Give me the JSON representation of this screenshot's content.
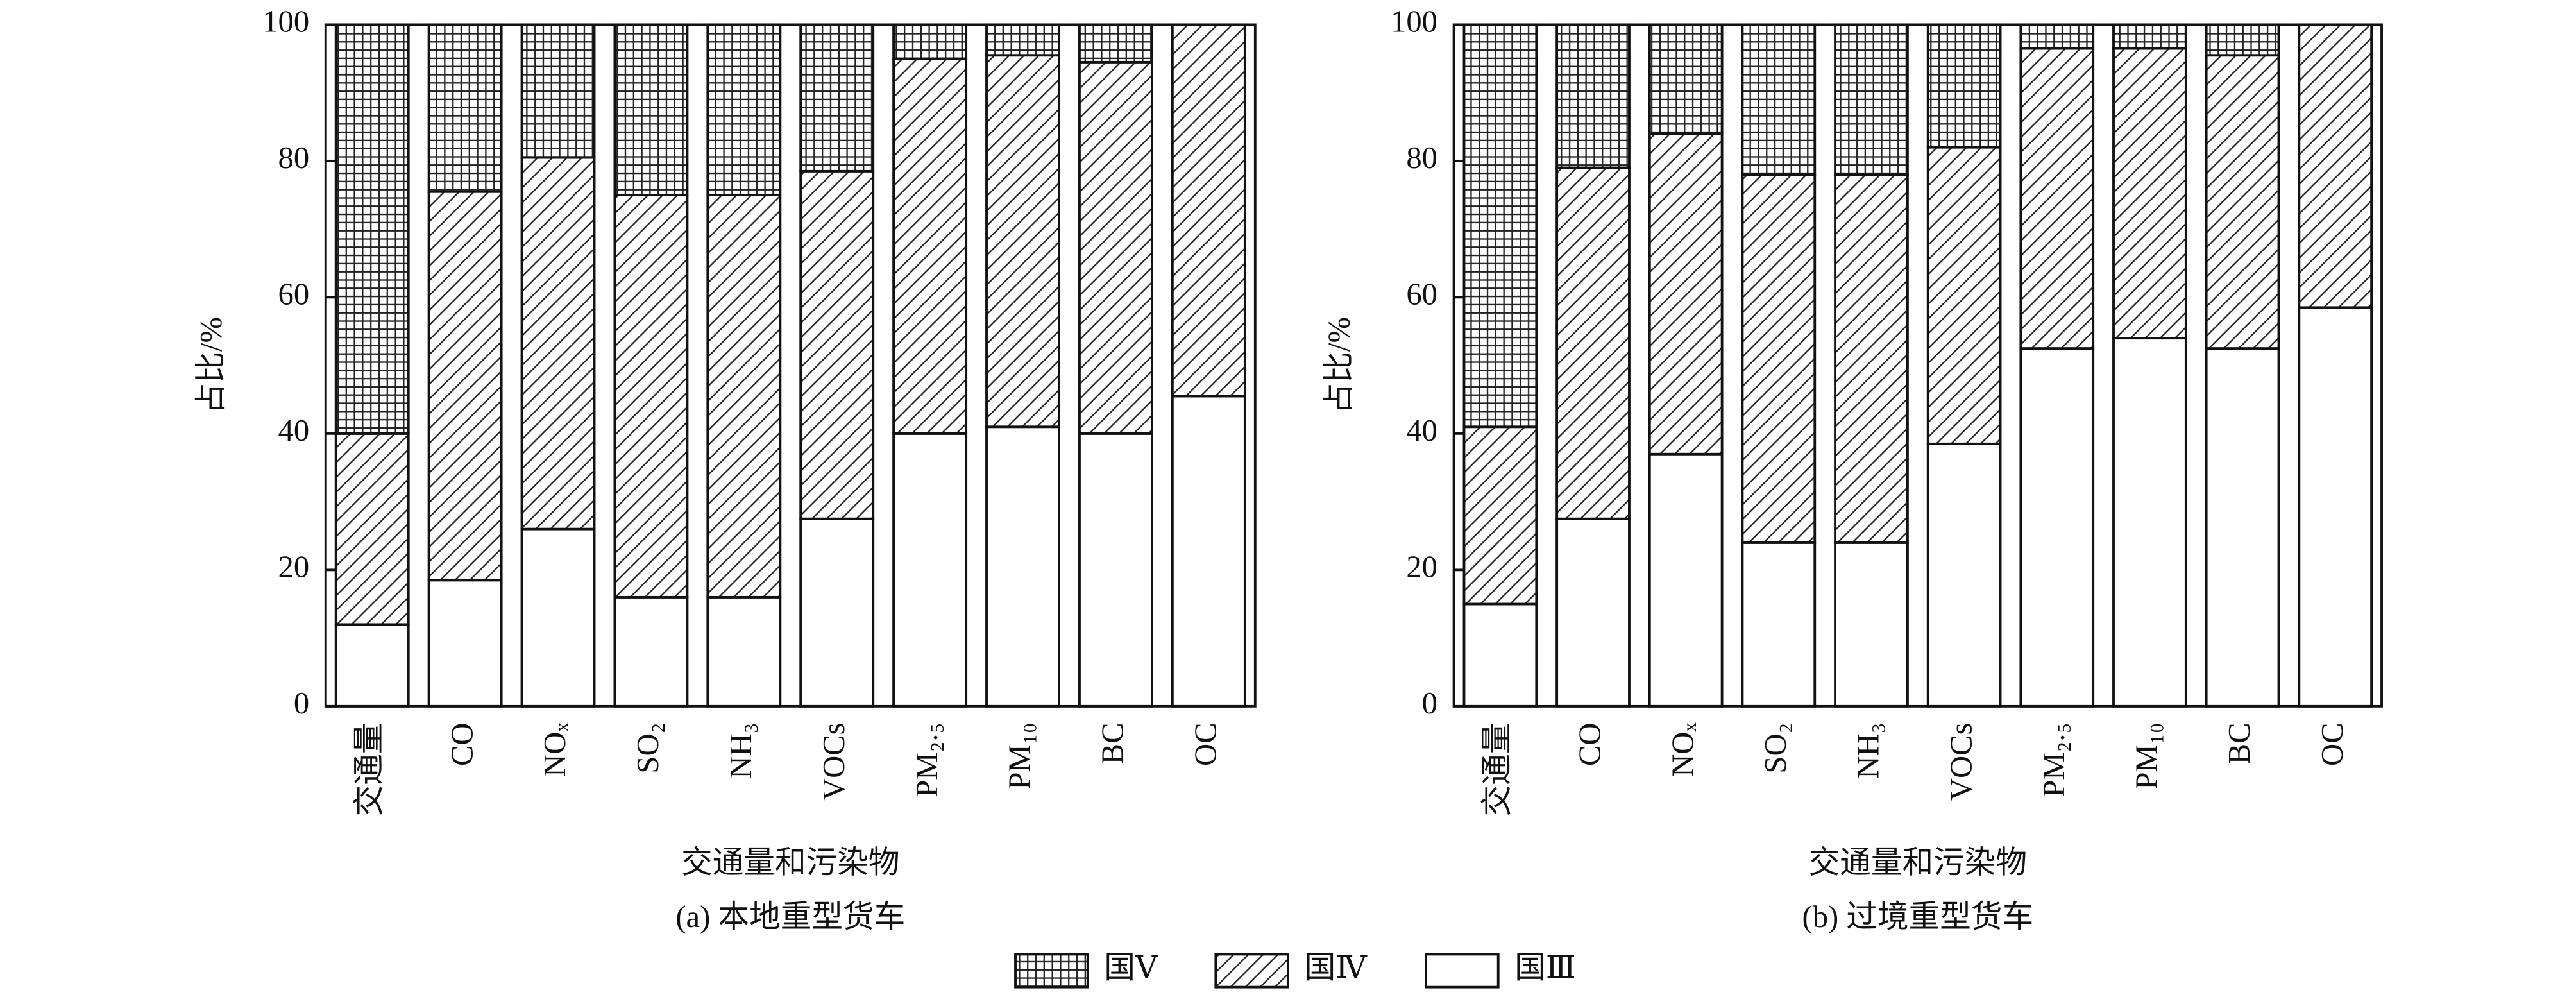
{
  "chart_data": [
    {
      "type": "stacked-bar",
      "title": "(a) 本地重型货车",
      "x_label": "交通量和污染物",
      "y_label": "占比/%",
      "categories": [
        "交通量",
        "CO",
        "NOₓ",
        "SO₂",
        "NH₃",
        "VOCs",
        "PM₂.₅",
        "PM₁₀",
        "BC",
        "OC"
      ],
      "ylim": [
        0,
        100
      ],
      "yticks": [
        0,
        20,
        40,
        60,
        80,
        100
      ],
      "series": [
        {
          "name": "国Ⅴ",
          "color": "#ffffff",
          "pattern": "grid",
          "values": [
            60,
            24.5,
            19.5,
            25,
            25,
            21.5,
            5,
            4.5,
            5.5,
            0
          ]
        },
        {
          "name": "国Ⅳ",
          "color": "#ffffff",
          "pattern": "hatch",
          "values": [
            28,
            57,
            54.5,
            59,
            59,
            51,
            55,
            54.5,
            54.5,
            54.5
          ]
        },
        {
          "name": "国Ⅲ",
          "color": "#ffffff",
          "pattern": "none",
          "values": [
            12,
            18.5,
            26,
            16,
            16,
            27.5,
            40,
            41,
            40,
            45.5
          ]
        }
      ]
    },
    {
      "type": "stacked-bar",
      "title": "(b) 过境重型货车",
      "x_label": "交通量和污染物",
      "y_label": "占比/%",
      "categories": [
        "交通量",
        "CO",
        "NOₓ",
        "SO₂",
        "NH₃",
        "VOCs",
        "PM₂.₅",
        "PM₁₀",
        "BC",
        "OC"
      ],
      "ylim": [
        0,
        100
      ],
      "yticks": [
        0,
        20,
        40,
        60,
        80,
        100
      ],
      "series": [
        {
          "name": "国Ⅴ",
          "color": "#ffffff",
          "pattern": "grid",
          "values": [
            59,
            21,
            16,
            22,
            22,
            18,
            3.5,
            3.5,
            4.5,
            0
          ]
        },
        {
          "name": "国Ⅳ",
          "color": "#ffffff",
          "pattern": "hatch",
          "values": [
            26,
            51.5,
            47,
            54,
            54,
            43.5,
            44,
            42.5,
            43,
            41.5
          ]
        },
        {
          "name": "国Ⅲ",
          "color": "#ffffff",
          "pattern": "none",
          "values": [
            15,
            27.5,
            37,
            24,
            24,
            38.5,
            52.5,
            54,
            52.5,
            58.5
          ]
        }
      ]
    }
  ]
}
